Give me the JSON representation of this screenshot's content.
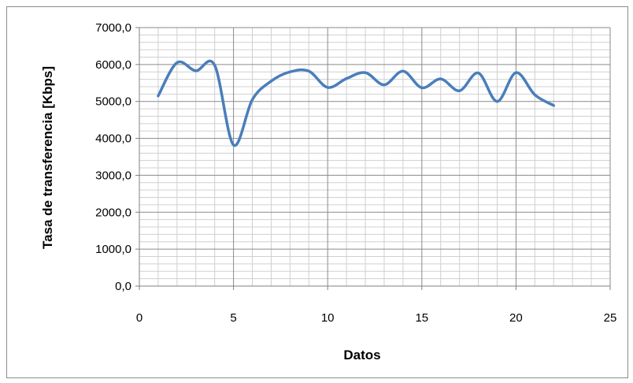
{
  "chart_data": {
    "type": "line",
    "title": "",
    "xlabel": "Datos",
    "ylabel": "Tasa de transferencia [Kbps]",
    "xlim": [
      0,
      25
    ],
    "ylim": [
      0,
      7000
    ],
    "x_ticks": [
      0,
      5,
      10,
      15,
      20,
      25
    ],
    "y_ticks": [
      0,
      1000,
      2000,
      3000,
      4000,
      5000,
      6000,
      7000
    ],
    "x_tick_labels": [
      "0",
      "5",
      "10",
      "15",
      "20",
      "25"
    ],
    "y_tick_labels": [
      "0,0",
      "1000,0",
      "2000,0",
      "3000,0",
      "4000,0",
      "5000,0",
      "6000,0",
      "7000,0"
    ],
    "grid": true,
    "legend": "none",
    "series": [
      {
        "color": "#4a7ebb",
        "smooth": true,
        "x": [
          1,
          2,
          3,
          4,
          5,
          6,
          7,
          8,
          9,
          10,
          11,
          12,
          13,
          14,
          15,
          16,
          17,
          18,
          19,
          20,
          21,
          22
        ],
        "y": [
          5150,
          6050,
          5830,
          5980,
          3820,
          5050,
          5550,
          5800,
          5820,
          5380,
          5620,
          5780,
          5450,
          5820,
          5370,
          5610,
          5290,
          5770,
          5000,
          5780,
          5180,
          4890
        ]
      }
    ]
  }
}
